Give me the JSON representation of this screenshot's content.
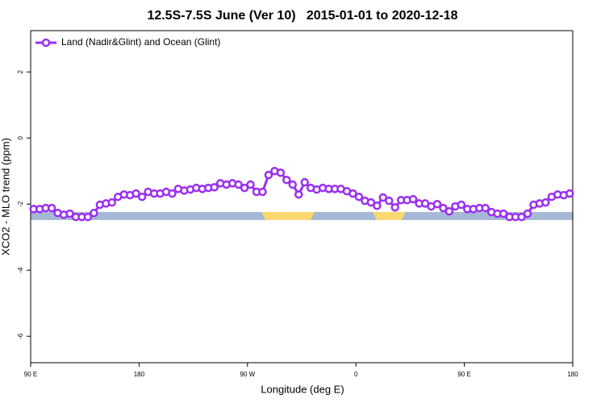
{
  "chart_data": {
    "type": "line",
    "title": "12.5S-7.5S June (Ver 10)   2015-01-01 to 2020-12-18",
    "xlabel": "Longitude (deg E)",
    "ylabel": "XCO2 - MLO trend (ppm)",
    "xlim": [
      90,
      540
    ],
    "ylim": [
      -6.8,
      3.25
    ],
    "xticks": [
      {
        "value": 90,
        "label": "90 E"
      },
      180,
      {
        "value": 270,
        "label": "90 W"
      },
      {
        "value": 360,
        "label": "0"
      },
      {
        "value": 450,
        "label": "90 E"
      },
      {
        "value": 540,
        "label": "180"
      }
    ],
    "yticks": [
      2,
      0,
      -2,
      -4,
      -6
    ],
    "legend": "top-left",
    "x": [
      92.5,
      97.5,
      102.5,
      107.5,
      112.5,
      117.5,
      122.5,
      127.5,
      132.5,
      137.5,
      142.5,
      147.5,
      152.5,
      157.5,
      162.5,
      167.5,
      172.5,
      177.5,
      182.5,
      187.5,
      192.5,
      197.5,
      202.5,
      207.5,
      212.5,
      217.5,
      222.5,
      227.5,
      232.5,
      237.5,
      242.5,
      247.5,
      252.5,
      257.5,
      262.5,
      267.5,
      272.5,
      277.5,
      282.5,
      287.5,
      292.5,
      297.5,
      302.5,
      307.5,
      312.5,
      317.5,
      322.5,
      327.5,
      332.5,
      337.5,
      342.5,
      347.5,
      352.5,
      357.5,
      362.5,
      367.5,
      372.5,
      377.5,
      382.5,
      387.5,
      392.5,
      397.5,
      402.5,
      407.5,
      412.5,
      417.5,
      422.5,
      427.5,
      432.5,
      437.5,
      442.5,
      447.5,
      452.5,
      457.5,
      462.5,
      467.5,
      472.5,
      477.5,
      482.5,
      487.5,
      492.5,
      497.5,
      502.5,
      507.5,
      512.5,
      517.5,
      522.5,
      527.5,
      532.5,
      537.5
    ],
    "series": [
      {
        "name": "Land (Nadir&Glint) and Ocean (Glint)",
        "color": "#9b30f0",
        "values": [
          -2.15,
          -2.15,
          -2.12,
          -2.12,
          -2.27,
          -2.32,
          -2.29,
          -2.39,
          -2.39,
          -2.39,
          -2.27,
          -2.02,
          -1.98,
          -1.95,
          -1.78,
          -1.71,
          -1.73,
          -1.68,
          -1.78,
          -1.63,
          -1.68,
          -1.68,
          -1.63,
          -1.68,
          -1.54,
          -1.59,
          -1.56,
          -1.51,
          -1.54,
          -1.51,
          -1.49,
          -1.37,
          -1.41,
          -1.37,
          -1.41,
          -1.51,
          -1.41,
          -1.63,
          -1.63,
          -1.12,
          -1.0,
          -1.05,
          -1.27,
          -1.41,
          -1.71,
          -1.34,
          -1.51,
          -1.56,
          -1.51,
          -1.54,
          -1.54,
          -1.54,
          -1.61,
          -1.68,
          -1.78,
          -1.9,
          -1.95,
          -2.05,
          -1.8,
          -1.9,
          -2.1,
          -1.88,
          -1.88,
          -1.85,
          -1.98,
          -1.98,
          -2.07,
          -2.0,
          -2.12,
          -2.22,
          -2.07,
          -2.02,
          -2.15,
          -2.15,
          -2.12,
          -2.12,
          -2.24,
          -2.29,
          -2.29,
          -2.39,
          -2.39,
          -2.39,
          -2.29,
          -2.02,
          -1.98,
          -1.95,
          -1.78,
          -1.71,
          -1.73,
          -1.68
        ]
      }
    ]
  }
}
